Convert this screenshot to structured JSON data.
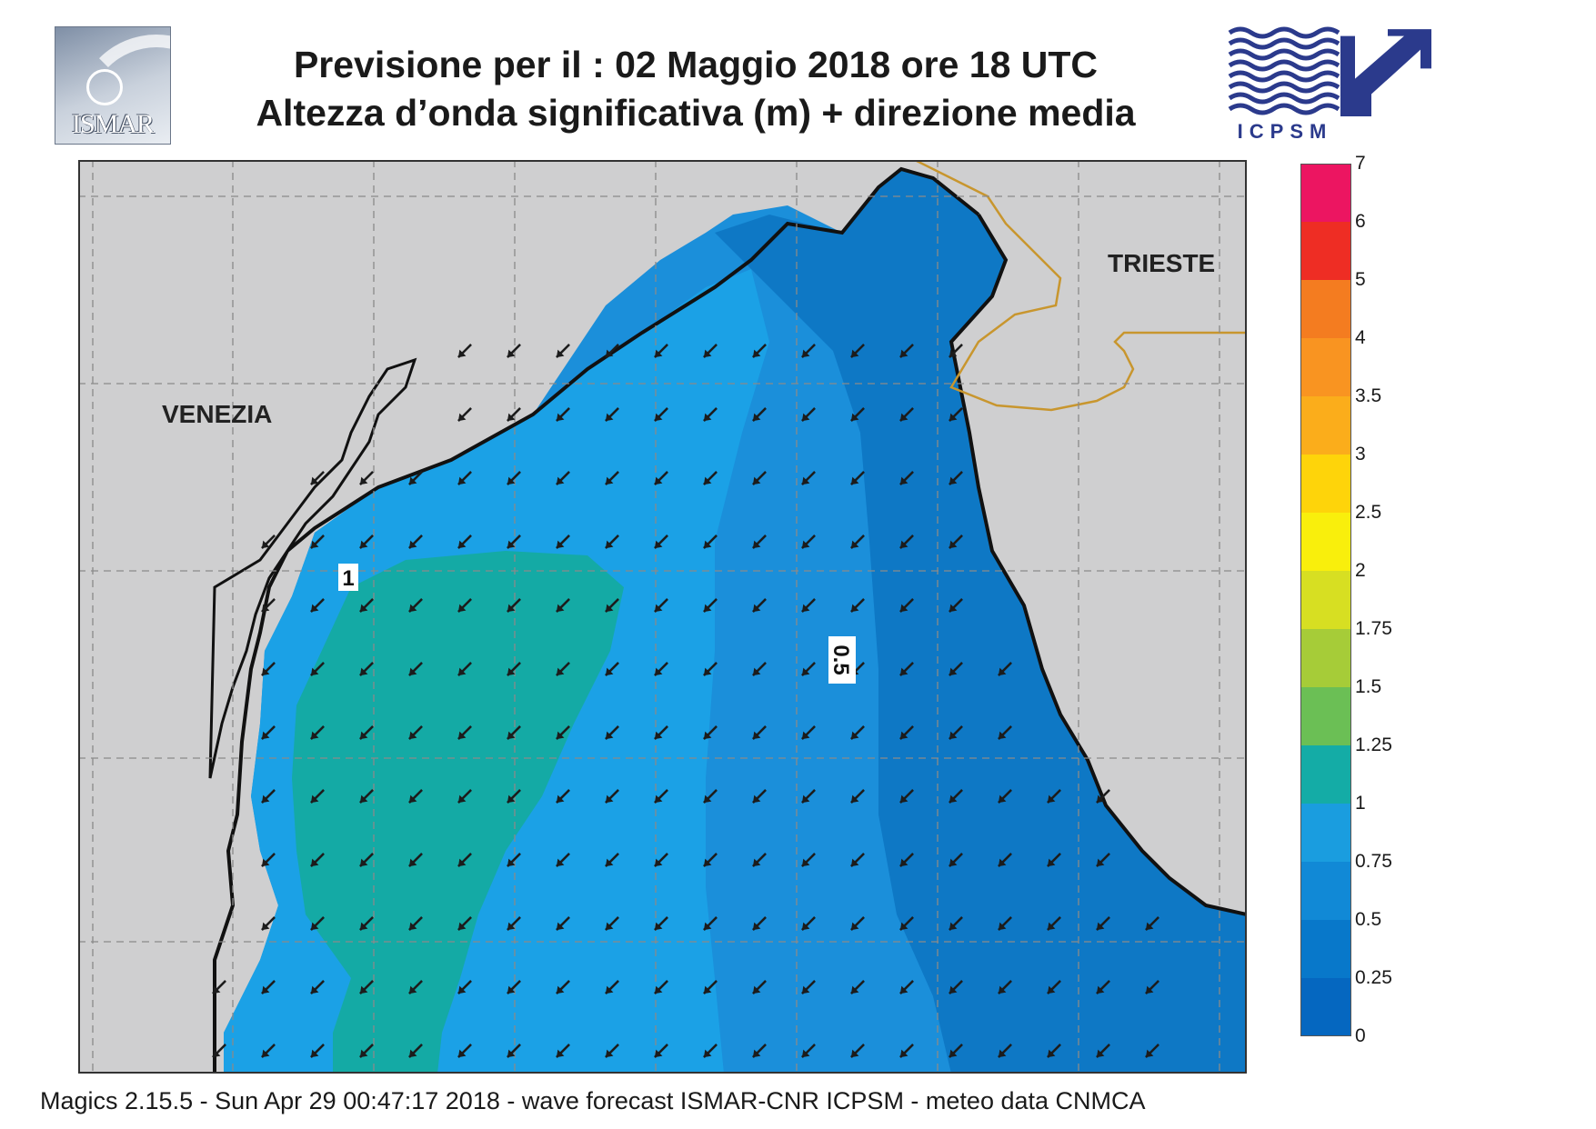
{
  "header": {
    "title_line1": "Previsione per il  :  02   Maggio  2018   ore 18 UTC",
    "title_line2": "Altezza d’onda significativa (m) + direzione media"
  },
  "logos": {
    "left_text": "ISMAR",
    "right_text": "ICPSM",
    "right_color": "#2b3a8c"
  },
  "map": {
    "place_labels": {
      "venezia": "VENEZIA",
      "trieste": "TRIESTE"
    },
    "contour_labels": {
      "one": "1",
      "half": "0.5"
    },
    "colors": {
      "land": "#cfcfd0",
      "sea_025_05": "#0e78c5",
      "sea_05_075": "#1b8fda",
      "sea_075_1": "#1ba1e6",
      "sea_1_125": "#14aaa5",
      "coastline": "#111111",
      "border": "#c8962e",
      "graticule": "#8a8a8a",
      "arrows": "#1c1c1c"
    },
    "mean_wave_direction": "south-west"
  },
  "legend": {
    "title": "",
    "thresholds": [
      "0",
      "0.25",
      "0.5",
      "0.75",
      "1",
      "1.25",
      "1.5",
      "1.75",
      "2",
      "2.5",
      "3",
      "3.5",
      "4",
      "5",
      "6",
      "7"
    ],
    "colors": [
      "#0567c0",
      "#0878ca",
      "#1189d6",
      "#1a9ddf",
      "#14aca6",
      "#6bbf55",
      "#a6cc38",
      "#d7df22",
      "#f9ef0c",
      "#fed40a",
      "#fbad1b",
      "#f99421",
      "#f47c20",
      "#ee2d24",
      "#ec1561"
    ]
  },
  "footer": {
    "text": "Magics 2.15.5 - Sun Apr 29 00:47:17 2018 - wave forecast  ISMAR-CNR  ICPSM - meteo data   CNMCA"
  }
}
